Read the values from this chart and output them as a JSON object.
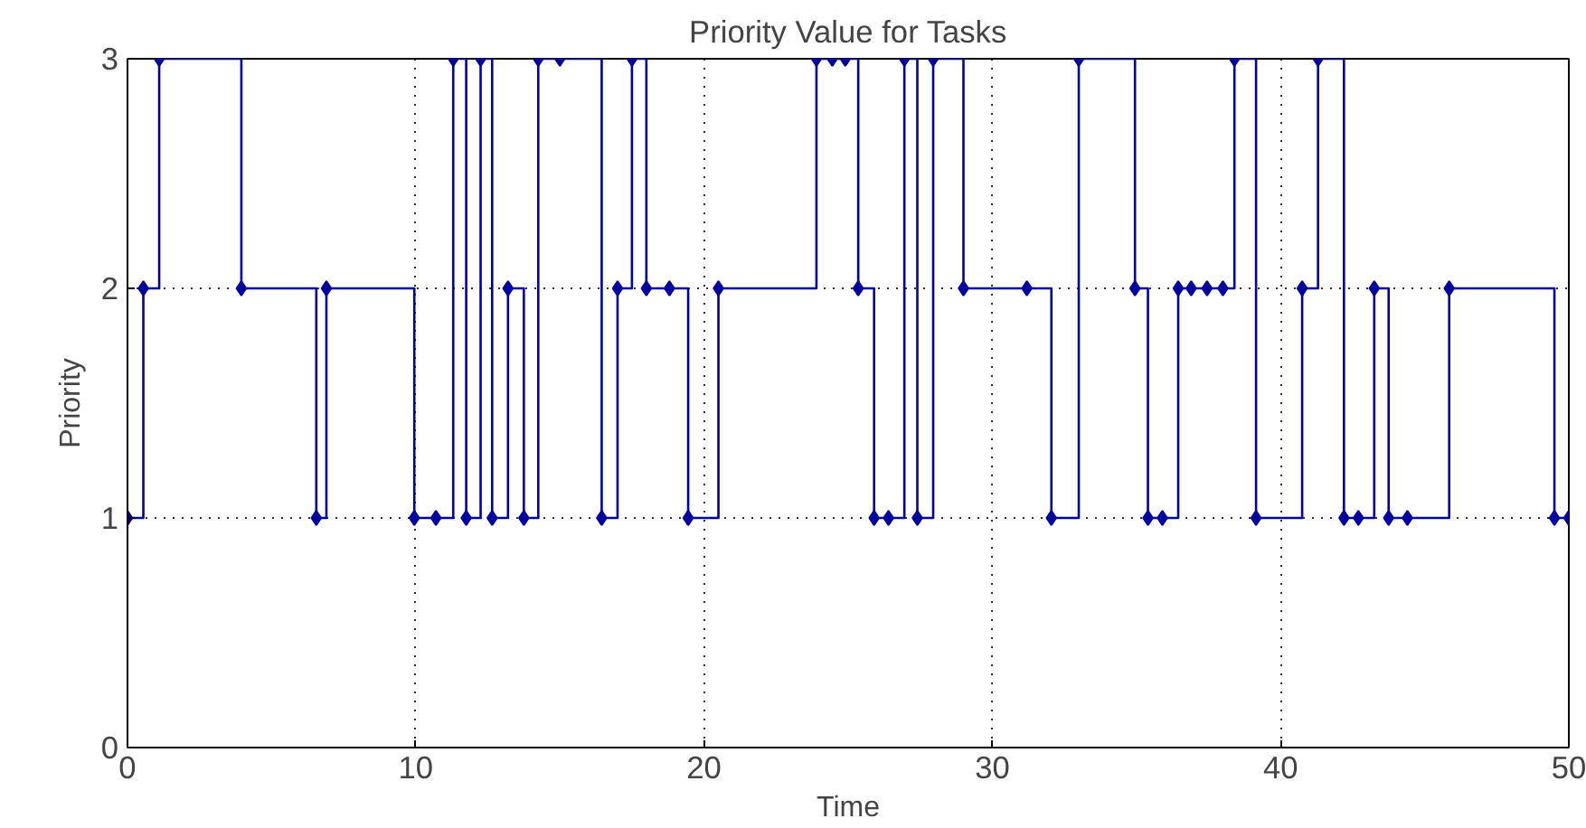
{
  "chart_data": {
    "type": "step",
    "title": "Priority Value for Tasks",
    "xlabel": "Time",
    "ylabel": "Priority",
    "x": [
      0.0,
      0.55,
      1.1,
      3.95,
      6.55,
      6.9,
      9.95,
      10.7,
      11.3,
      11.75,
      12.25,
      12.65,
      13.2,
      13.75,
      14.25,
      15.0,
      16.45,
      17.0,
      17.5,
      18.0,
      18.8,
      19.45,
      20.5,
      23.9,
      24.45,
      24.9,
      25.35,
      25.9,
      26.4,
      26.95,
      27.4,
      27.95,
      29.0,
      31.2,
      32.05,
      33.0,
      34.95,
      35.4,
      35.9,
      36.45,
      36.9,
      37.45,
      38.0,
      38.4,
      39.15,
      40.75,
      41.3,
      42.2,
      42.7,
      43.25,
      43.75,
      44.4,
      45.85,
      49.5,
      50.0
    ],
    "series": [
      {
        "color": "#0000a0",
        "values": [
          1,
          2,
          3,
          2,
          1,
          2,
          1,
          1,
          3,
          1,
          3,
          1,
          2,
          1,
          3,
          3,
          1,
          2,
          3,
          2,
          2,
          1,
          2,
          3,
          3,
          3,
          2,
          1,
          1,
          3,
          1,
          3,
          2,
          2,
          1,
          3,
          2,
          1,
          1,
          2,
          2,
          2,
          2,
          3,
          1,
          2,
          3,
          1,
          1,
          2,
          1,
          1,
          2,
          1,
          1
        ]
      }
    ],
    "xlim": [
      0,
      50
    ],
    "ylim": [
      0,
      3
    ],
    "xticks": [
      0,
      10,
      20,
      30,
      40,
      50
    ],
    "yticks": [
      0,
      1,
      2,
      3
    ],
    "grid": true,
    "marker": "diamond"
  }
}
